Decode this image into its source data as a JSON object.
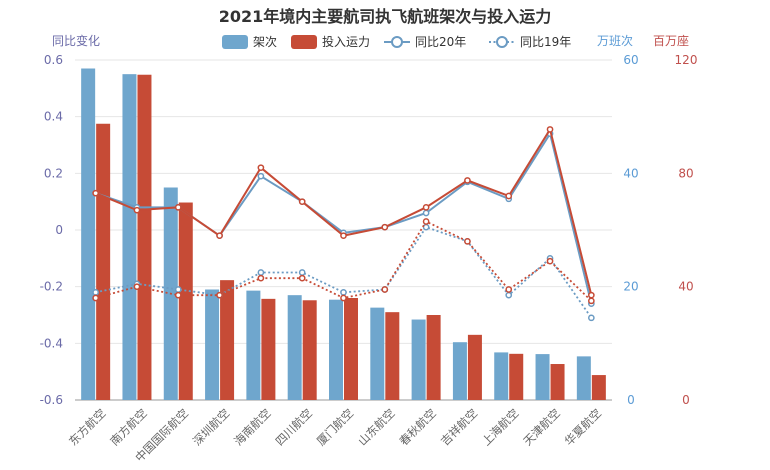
{
  "chart_data": {
    "type": "bar",
    "title": "2021年境内主要航司执飞航班架次与投入运力",
    "categories": [
      "东方航空",
      "南方航空",
      "中国国际航空",
      "深圳航空",
      "海南航空",
      "四川航空",
      "厦门航空",
      "山东航空",
      "春秋航空",
      "吉祥航空",
      "上海航空",
      "天津航空",
      "华夏航空"
    ],
    "left_axis": {
      "label": "同比变化",
      "min": -0.6,
      "max": 0.6,
      "ticks": [
        "-0.6",
        "-0.4",
        "-0.2",
        "0",
        "0.2",
        "0.4",
        "0.6"
      ]
    },
    "right_axis_1": {
      "label": "万班次",
      "min": 0,
      "max": 60,
      "ticks": [
        "0",
        "20",
        "40",
        "60"
      ],
      "color": "#5b9bd5"
    },
    "right_axis_2": {
      "label": "百万座",
      "min": 0,
      "max": 120,
      "ticks": [
        "0",
        "40",
        "80",
        "120"
      ],
      "color": "#c0504d"
    },
    "series": [
      {
        "name": "架次",
        "kind": "bar",
        "axis": "right_axis_1",
        "color": "#6fa6cd",
        "values": [
          58.5,
          57.5,
          37.5,
          19.5,
          19.3,
          18.5,
          17.7,
          16.3,
          14.2,
          10.2,
          8.4,
          8.1,
          7.7
        ]
      },
      {
        "name": "投入运力",
        "kind": "bar",
        "axis": "right_axis_2",
        "color": "#c64b36",
        "values": [
          97.5,
          114.8,
          69.7,
          42.3,
          35.7,
          35.2,
          36.0,
          31.0,
          30.0,
          23.0,
          16.3,
          12.7,
          8.8
        ]
      },
      {
        "name": "同比20年",
        "kind": "line",
        "axis": "left_axis",
        "color": "#6b9bc3",
        "dashed": false,
        "values": [
          0.13,
          0.08,
          0.08,
          -0.02,
          0.19,
          0.1,
          -0.01,
          0.01,
          0.06,
          0.17,
          0.11,
          0.34,
          -0.26
        ]
      },
      {
        "name": "同比19年",
        "kind": "line",
        "axis": "left_axis",
        "color": "#6b9bc3",
        "dashed": true,
        "values": [
          -0.22,
          -0.19,
          -0.21,
          -0.23,
          -0.15,
          -0.15,
          -0.22,
          -0.21,
          0.01,
          -0.04,
          -0.23,
          -0.1,
          -0.31
        ]
      },
      {
        "name": "同比20年 (运力)",
        "kind": "line",
        "axis": "left_axis",
        "color": "#c64b36",
        "dashed": false,
        "in_legend": false,
        "values": [
          0.13,
          0.07,
          0.08,
          -0.02,
          0.22,
          0.1,
          -0.02,
          0.01,
          0.08,
          0.175,
          0.12,
          0.355,
          -0.23
        ]
      },
      {
        "name": "同比19年 (运力)",
        "kind": "line",
        "axis": "left_axis",
        "color": "#c64b36",
        "dashed": true,
        "in_legend": false,
        "values": [
          -0.24,
          -0.2,
          -0.23,
          -0.23,
          -0.17,
          -0.17,
          -0.24,
          -0.21,
          0.03,
          -0.04,
          -0.21,
          -0.11,
          -0.25
        ]
      }
    ],
    "grid": true,
    "legend": "top-center"
  }
}
